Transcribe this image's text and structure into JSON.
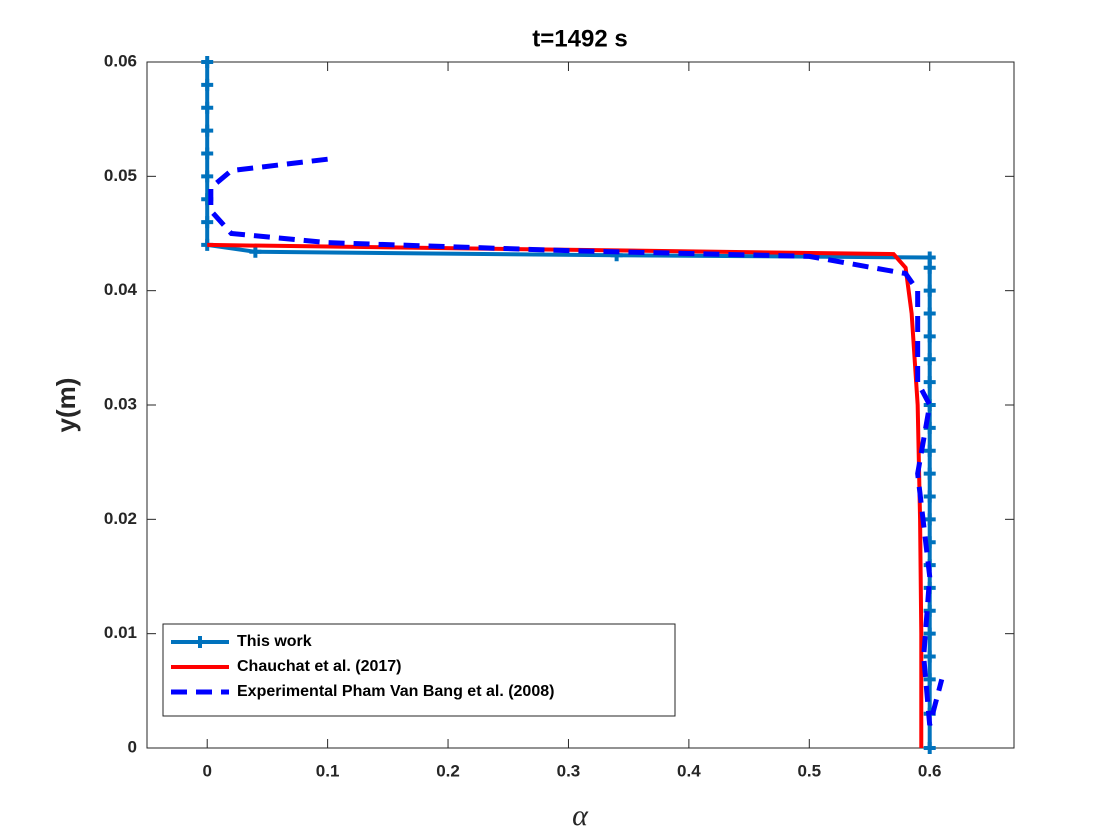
{
  "chart_data": {
    "type": "line",
    "title": "t=1492 s",
    "x_label": "α",
    "y_label": "y(m)",
    "xlim": [
      -0.05,
      0.67
    ],
    "ylim": [
      0,
      0.06
    ],
    "xticks": [
      0,
      0.1,
      0.2,
      0.3,
      0.4,
      0.5,
      0.6
    ],
    "yticks": [
      0,
      0.01,
      0.02,
      0.03,
      0.04,
      0.05,
      0.06
    ],
    "legend": "lower left",
    "series": [
      {
        "name": "This work",
        "color": "#0072bd",
        "marker": "+",
        "dash": false,
        "x": [
          0,
          0,
          0,
          0,
          0,
          0,
          0,
          0,
          0,
          0.04,
          0.34,
          0.6,
          0.6,
          0.6,
          0.6,
          0.6,
          0.6,
          0.6,
          0.6,
          0.6,
          0.6,
          0.6,
          0.6,
          0.6,
          0.6,
          0.6,
          0.6,
          0.6,
          0.6,
          0.6,
          0.6,
          0.6,
          0.6
        ],
        "values": [
          0.06,
          0.058,
          0.056,
          0.054,
          0.052,
          0.05,
          0.048,
          0.046,
          0.044,
          0.0434,
          0.0431,
          0.0429,
          0.042,
          0.04,
          0.038,
          0.036,
          0.034,
          0.032,
          0.03,
          0.028,
          0.026,
          0.024,
          0.022,
          0.02,
          0.018,
          0.016,
          0.014,
          0.012,
          0.01,
          0.008,
          0.006,
          0.003,
          0
        ]
      },
      {
        "name": "Chauchat et al. (2017)",
        "color": "#ff0000",
        "marker": null,
        "dash": false,
        "x": [
          0,
          0.57,
          0.58,
          0.585,
          0.59,
          0.592,
          0.593,
          0.593
        ],
        "values": [
          0.044,
          0.0432,
          0.042,
          0.038,
          0.03,
          0.02,
          0.01,
          0
        ]
      },
      {
        "name": "Experimental Pham Van Bang et al. (2008)",
        "color": "#0000ff",
        "marker": null,
        "dash": true,
        "x": [
          0.1,
          0.02,
          0.003,
          0.003,
          0.02,
          0.1,
          0.3,
          0.5,
          0.58,
          0.59,
          0.59,
          0.6,
          0.59,
          0.6,
          0.595,
          0.6,
          0.61
        ],
        "values": [
          0.0515,
          0.0505,
          0.049,
          0.047,
          0.045,
          0.0442,
          0.0435,
          0.043,
          0.0415,
          0.04,
          0.032,
          0.03,
          0.024,
          0.015,
          0.008,
          0.002,
          0.006
        ]
      }
    ]
  }
}
